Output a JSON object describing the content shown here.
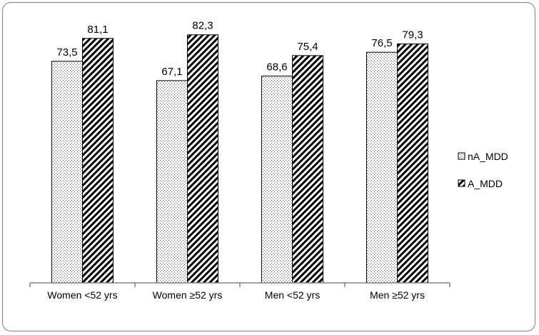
{
  "chart_data": {
    "type": "bar",
    "title": "",
    "xlabel": "",
    "ylabel": "",
    "ylim": [
      0,
      100
    ],
    "grid": false,
    "legend_position": "right",
    "categories": [
      "Women <52 yrs",
      "Women ≥52 yrs",
      "Men <52 yrs",
      "Men ≥52 yrs"
    ],
    "series": [
      {
        "name": "nA_MDD",
        "values": [
          73.5,
          67.1,
          68.6,
          76.5
        ],
        "labels": [
          "73,5",
          "67,1",
          "68,6",
          "76,5"
        ],
        "pattern": "dotted",
        "color": "#000000"
      },
      {
        "name": "A_MDD",
        "values": [
          81.1,
          82.3,
          75.4,
          79.3
        ],
        "labels": [
          "81,1",
          "82,3",
          "75,4",
          "79,3"
        ],
        "pattern": "diagonal-hatch",
        "color": "#000000"
      }
    ]
  }
}
